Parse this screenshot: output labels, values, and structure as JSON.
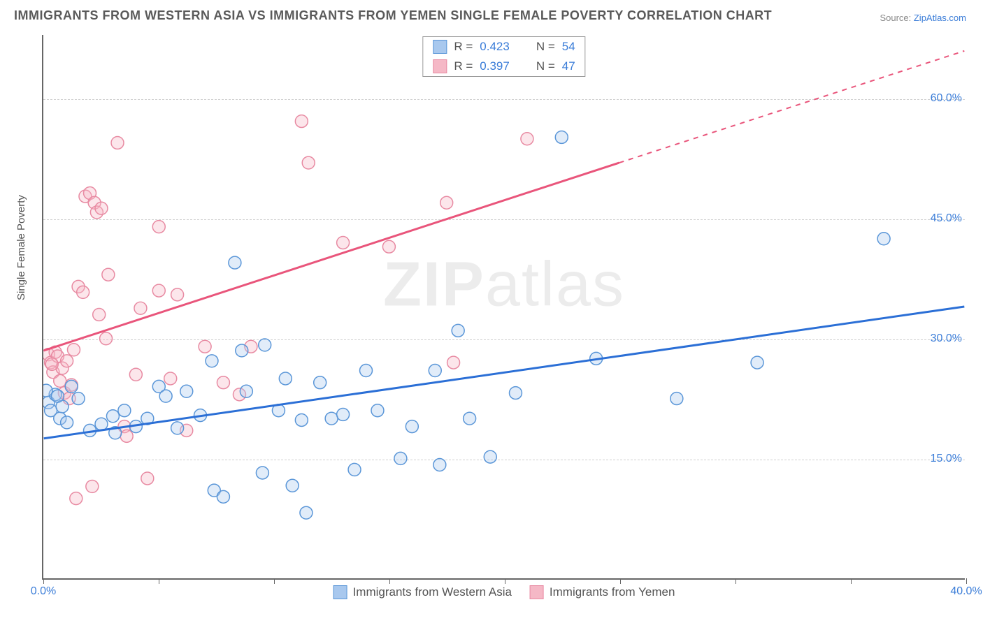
{
  "title": "IMMIGRANTS FROM WESTERN ASIA VS IMMIGRANTS FROM YEMEN SINGLE FEMALE POVERTY CORRELATION CHART",
  "source_label": "Source: ",
  "source_link": "ZipAtlas.com",
  "ylabel": "Single Female Poverty",
  "watermark_bold": "ZIP",
  "watermark_rest": "atlas",
  "chart": {
    "type": "scatter",
    "xlim": [
      0,
      40
    ],
    "ylim": [
      0,
      68
    ],
    "y_ticks": [
      15,
      30,
      45,
      60
    ],
    "y_tick_labels": [
      "15.0%",
      "30.0%",
      "45.0%",
      "60.0%"
    ],
    "x_ticks": [
      0,
      5,
      10,
      15,
      20,
      25,
      30,
      35,
      40
    ],
    "x_tick_labels": [
      "0.0%",
      "",
      "",
      "",
      "",
      "",
      "",
      "",
      "40.0%"
    ],
    "background_color": "#ffffff",
    "grid_color": "#d0d0d0",
    "marker_radius": 9,
    "line_width": 3,
    "series": {
      "blue": {
        "label": "Immigrants from Western Asia",
        "color_fill": "#a8c8ee",
        "color_stroke": "#5a96d8",
        "line_color": "#2b6fd6",
        "R_label": "R = ",
        "R": "0.423",
        "N_label": "N = ",
        "N": "54",
        "trend": {
          "x1": 0,
          "y1": 17.5,
          "x2": 40,
          "y2": 34
        },
        "points": [
          [
            0.2,
            22
          ],
          [
            0.3,
            21
          ],
          [
            0.5,
            23
          ],
          [
            0.7,
            20
          ],
          [
            0.8,
            21.5
          ],
          [
            1.0,
            19.5
          ],
          [
            1.2,
            24
          ],
          [
            1.5,
            22.5
          ],
          [
            2.0,
            18.5
          ],
          [
            2.5,
            19.3
          ],
          [
            3.0,
            20.3
          ],
          [
            3.1,
            18.2
          ],
          [
            3.5,
            21
          ],
          [
            4.0,
            19.0
          ],
          [
            4.5,
            20.0
          ],
          [
            5.0,
            24
          ],
          [
            5.3,
            22.8
          ],
          [
            5.8,
            18.8
          ],
          [
            6.2,
            23.4
          ],
          [
            6.8,
            20.4
          ],
          [
            7.3,
            27.2
          ],
          [
            7.4,
            11.0
          ],
          [
            7.8,
            10.2
          ],
          [
            8.3,
            39.5
          ],
          [
            8.6,
            28.5
          ],
          [
            8.8,
            23.4
          ],
          [
            9.5,
            13.2
          ],
          [
            9.6,
            29.2
          ],
          [
            10.2,
            21.0
          ],
          [
            10.5,
            25.0
          ],
          [
            10.8,
            11.6
          ],
          [
            11.2,
            19.8
          ],
          [
            11.4,
            8.2
          ],
          [
            12.0,
            24.5
          ],
          [
            12.5,
            20.0
          ],
          [
            13.0,
            20.5
          ],
          [
            13.5,
            13.6
          ],
          [
            14.0,
            26.0
          ],
          [
            14.5,
            21.0
          ],
          [
            15.5,
            15.0
          ],
          [
            16.0,
            19.0
          ],
          [
            17.0,
            26.0
          ],
          [
            17.2,
            14.2
          ],
          [
            18.0,
            31.0
          ],
          [
            18.5,
            20.0
          ],
          [
            19.4,
            15.2
          ],
          [
            20.5,
            23.2
          ],
          [
            22.5,
            55.2
          ],
          [
            24.0,
            27.5
          ],
          [
            27.5,
            22.5
          ],
          [
            31.0,
            27.0
          ],
          [
            36.5,
            42.5
          ],
          [
            0.1,
            23.5
          ],
          [
            0.6,
            22.8
          ]
        ]
      },
      "pink": {
        "label": "Immigrants from Yemen",
        "color_fill": "#f5b8c6",
        "color_stroke": "#e88aa2",
        "line_color": "#e9557b",
        "R_label": "R = ",
        "R": "0.397",
        "N_label": "N = ",
        "N": "47",
        "trend_solid": {
          "x1": 0,
          "y1": 28.5,
          "x2": 25,
          "y2": 52
        },
        "trend_dashed": {
          "x1": 25,
          "y1": 52,
          "x2": 40,
          "y2": 66
        },
        "points": [
          [
            0.2,
            28
          ],
          [
            0.3,
            27
          ],
          [
            0.4,
            25.8
          ],
          [
            0.5,
            28.3
          ],
          [
            0.6,
            27.8
          ],
          [
            0.7,
            24.7
          ],
          [
            0.8,
            26.3
          ],
          [
            0.9,
            23.2
          ],
          [
            1.0,
            27.2
          ],
          [
            1.1,
            22.5
          ],
          [
            1.2,
            24.2
          ],
          [
            1.3,
            28.6
          ],
          [
            1.5,
            36.5
          ],
          [
            1.7,
            35.8
          ],
          [
            1.8,
            47.8
          ],
          [
            2.0,
            48.2
          ],
          [
            2.2,
            47.0
          ],
          [
            2.3,
            45.8
          ],
          [
            2.4,
            33.0
          ],
          [
            2.5,
            46.3
          ],
          [
            2.7,
            30.0
          ],
          [
            2.8,
            38.0
          ],
          [
            3.2,
            54.5
          ],
          [
            3.5,
            19.0
          ],
          [
            3.6,
            17.8
          ],
          [
            4.0,
            25.5
          ],
          [
            4.2,
            33.8
          ],
          [
            4.5,
            12.5
          ],
          [
            5.0,
            36.0
          ],
          [
            5.0,
            44.0
          ],
          [
            5.5,
            25.0
          ],
          [
            5.8,
            35.5
          ],
          [
            6.2,
            18.5
          ],
          [
            7.0,
            29.0
          ],
          [
            7.8,
            24.5
          ],
          [
            8.5,
            23.0
          ],
          [
            9.0,
            29.0
          ],
          [
            11.2,
            57.2
          ],
          [
            11.5,
            52.0
          ],
          [
            13.0,
            42.0
          ],
          [
            15.0,
            41.5
          ],
          [
            17.5,
            47.0
          ],
          [
            17.8,
            27.0
          ],
          [
            21.0,
            55.0
          ],
          [
            1.4,
            10.0
          ],
          [
            2.1,
            11.5
          ],
          [
            0.35,
            26.8
          ]
        ]
      }
    }
  }
}
